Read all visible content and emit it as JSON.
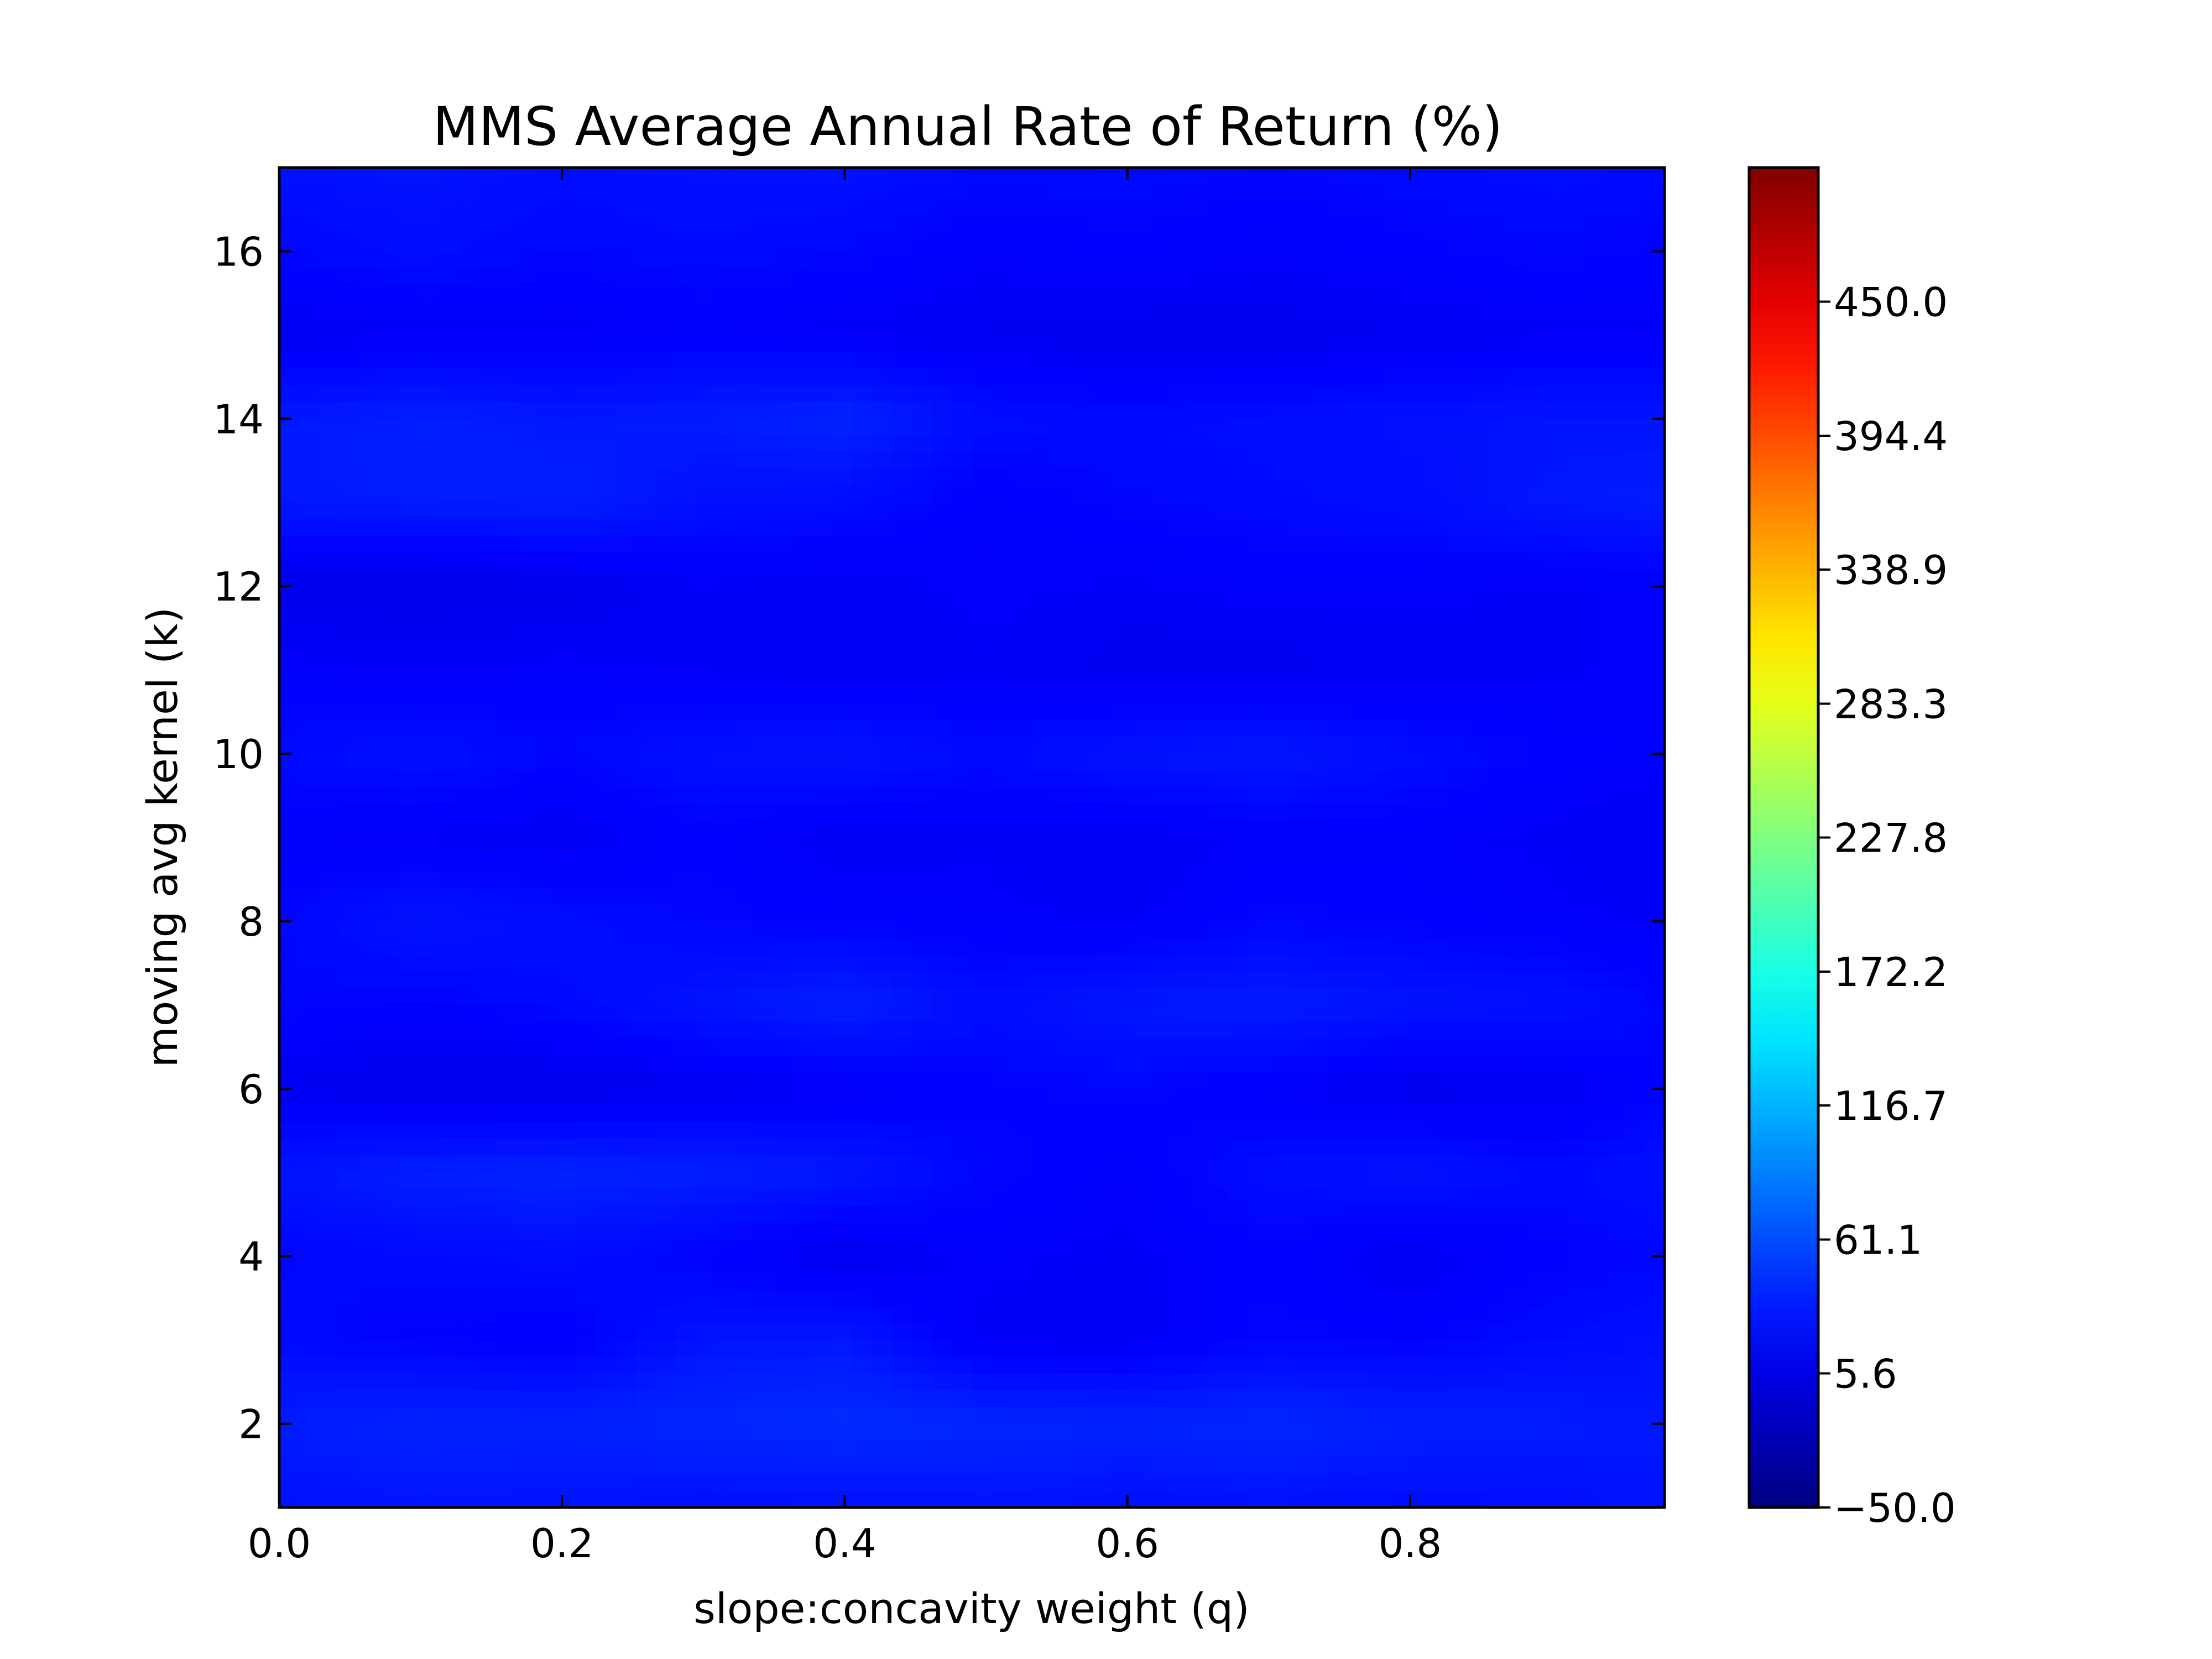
{
  "chart_data": {
    "type": "heatmap",
    "title": "MMS Average Annual Rate of Return (%)",
    "xlabel": "slope:concavity weight (q)",
    "ylabel": "moving avg kernel (k)",
    "xlim": [
      0.0,
      0.98
    ],
    "ylim": [
      1,
      17
    ],
    "xticks": [
      0.0,
      0.2,
      0.4,
      0.6,
      0.8
    ],
    "xtick_labels": [
      "0.0",
      "0.2",
      "0.4",
      "0.6",
      "0.8"
    ],
    "yticks": [
      2,
      4,
      6,
      8,
      10,
      12,
      14,
      16
    ],
    "ytick_labels": [
      "2",
      "4",
      "6",
      "8",
      "10",
      "12",
      "14",
      "16"
    ],
    "colormap": "jet",
    "colorbar": {
      "vmin": -50.0,
      "vmax": 505.6,
      "ticks": [
        -50.0,
        5.6,
        61.1,
        116.7,
        172.2,
        227.8,
        283.3,
        338.9,
        394.4,
        450.0
      ],
      "tick_labels": [
        "−50.0",
        "5.6",
        "61.1",
        "116.7",
        "172.2",
        "227.8",
        "283.3",
        "338.9",
        "394.4",
        "450.0"
      ]
    },
    "x": [
      0.0,
      0.1,
      0.2,
      0.3,
      0.4,
      0.5,
      0.6,
      0.7,
      0.8,
      0.9,
      0.98
    ],
    "y": [
      1,
      2,
      3,
      4,
      5,
      6,
      7,
      8,
      9,
      10,
      11,
      12,
      13,
      14,
      15,
      16,
      17
    ],
    "z": [
      [
        28,
        30,
        29,
        27,
        28,
        29,
        27,
        28,
        26,
        27,
        30
      ],
      [
        34,
        38,
        37,
        40,
        42,
        40,
        38,
        40,
        36,
        34,
        32
      ],
      [
        24,
        20,
        18,
        30,
        32,
        15,
        14,
        22,
        20,
        25,
        28
      ],
      [
        22,
        24,
        26,
        20,
        12,
        18,
        16,
        20,
        14,
        20,
        22
      ],
      [
        30,
        36,
        38,
        36,
        32,
        22,
        18,
        26,
        30,
        24,
        28
      ],
      [
        14,
        10,
        10,
        14,
        16,
        20,
        22,
        18,
        12,
        14,
        20
      ],
      [
        22,
        20,
        24,
        30,
        36,
        26,
        32,
        34,
        30,
        28,
        22
      ],
      [
        22,
        30,
        26,
        22,
        20,
        18,
        16,
        22,
        20,
        18,
        16
      ],
      [
        18,
        16,
        14,
        20,
        14,
        16,
        14,
        18,
        18,
        16,
        14
      ],
      [
        24,
        28,
        22,
        28,
        30,
        24,
        30,
        32,
        26,
        20,
        18
      ],
      [
        18,
        16,
        18,
        16,
        14,
        16,
        12,
        12,
        14,
        16,
        18
      ],
      [
        10,
        8,
        10,
        16,
        14,
        18,
        16,
        18,
        18,
        16,
        18
      ],
      [
        32,
        34,
        36,
        28,
        26,
        18,
        22,
        24,
        26,
        32,
        34
      ],
      [
        32,
        36,
        32,
        34,
        38,
        26,
        24,
        26,
        28,
        30,
        30
      ],
      [
        14,
        16,
        16,
        18,
        16,
        14,
        12,
        12,
        14,
        16,
        16
      ],
      [
        22,
        26,
        22,
        24,
        22,
        18,
        20,
        18,
        20,
        22,
        20
      ],
      [
        28,
        30,
        26,
        28,
        28,
        24,
        24,
        22,
        24,
        26,
        24
      ]
    ]
  }
}
